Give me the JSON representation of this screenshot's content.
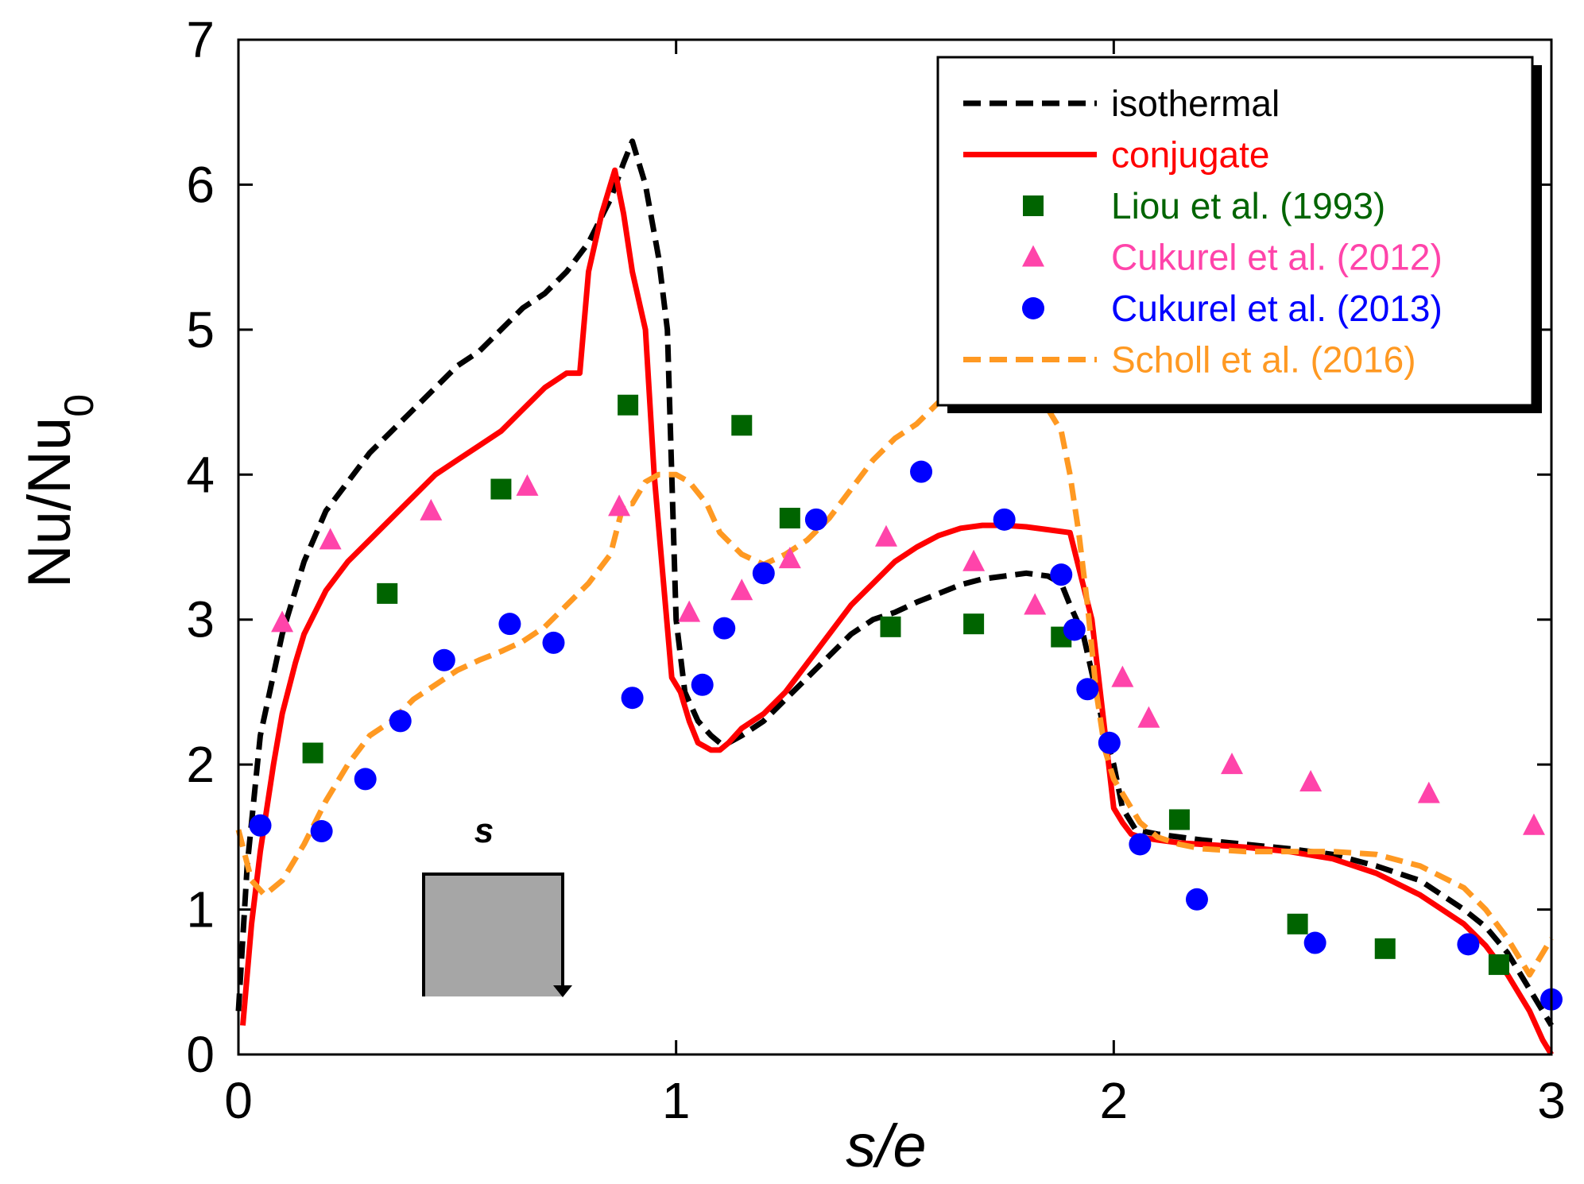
{
  "chart_data": {
    "type": "line",
    "xlabel": "s/e",
    "ylabel": "Nu/Nu0",
    "xlim": [
      0,
      3
    ],
    "ylim": [
      0,
      7
    ],
    "xticks": [
      "0",
      "1",
      "2",
      "3"
    ],
    "yticks": [
      "0",
      "1",
      "2",
      "3",
      "4",
      "5",
      "6",
      "7"
    ],
    "legend_position": "top-right",
    "inset_label": "s",
    "series": [
      {
        "name": "isothermal",
        "kind": "line",
        "style": "dashed",
        "color": "#000000",
        "x": [
          0,
          0.02,
          0.05,
          0.1,
          0.15,
          0.2,
          0.25,
          0.3,
          0.35,
          0.4,
          0.45,
          0.5,
          0.55,
          0.6,
          0.65,
          0.7,
          0.75,
          0.8,
          0.85,
          0.88,
          0.9,
          0.93,
          0.96,
          0.98,
          1.0,
          1.02,
          1.05,
          1.08,
          1.1,
          1.12,
          1.15,
          1.2,
          1.25,
          1.3,
          1.35,
          1.4,
          1.45,
          1.5,
          1.55,
          1.6,
          1.65,
          1.7,
          1.75,
          1.8,
          1.85,
          1.88,
          1.9,
          1.93,
          1.96,
          1.98,
          2.0,
          2.02,
          2.05,
          2.1,
          2.15,
          2.2,
          2.3,
          2.4,
          2.5,
          2.6,
          2.7,
          2.8,
          2.85,
          2.9,
          2.95,
          3.0
        ],
        "y": [
          0.3,
          1.3,
          2.2,
          2.9,
          3.4,
          3.75,
          3.95,
          4.15,
          4.3,
          4.45,
          4.6,
          4.75,
          4.85,
          5.0,
          5.15,
          5.25,
          5.4,
          5.6,
          5.9,
          6.15,
          6.3,
          6.0,
          5.5,
          5.0,
          3.0,
          2.5,
          2.3,
          2.2,
          2.15,
          2.15,
          2.2,
          2.3,
          2.45,
          2.6,
          2.75,
          2.9,
          3.0,
          3.05,
          3.12,
          3.18,
          3.24,
          3.28,
          3.3,
          3.32,
          3.3,
          3.25,
          3.1,
          2.9,
          2.5,
          2.2,
          2.0,
          1.7,
          1.55,
          1.52,
          1.5,
          1.48,
          1.45,
          1.42,
          1.38,
          1.3,
          1.2,
          1.0,
          0.88,
          0.7,
          0.45,
          0.2
        ]
      },
      {
        "name": "conjugate",
        "kind": "line",
        "style": "solid",
        "color": "#ff0000",
        "x": [
          0.01,
          0.03,
          0.05,
          0.08,
          0.1,
          0.13,
          0.15,
          0.2,
          0.25,
          0.3,
          0.35,
          0.4,
          0.45,
          0.5,
          0.55,
          0.6,
          0.65,
          0.7,
          0.75,
          0.78,
          0.8,
          0.83,
          0.86,
          0.88,
          0.9,
          0.93,
          0.95,
          0.97,
          0.99,
          1.01,
          1.03,
          1.05,
          1.08,
          1.1,
          1.12,
          1.15,
          1.2,
          1.25,
          1.3,
          1.35,
          1.4,
          1.45,
          1.5,
          1.55,
          1.6,
          1.65,
          1.7,
          1.75,
          1.8,
          1.85,
          1.9,
          1.95,
          2.0,
          2.02,
          2.04,
          2.06,
          2.1,
          2.15,
          2.2,
          2.3,
          2.4,
          2.5,
          2.6,
          2.7,
          2.8,
          2.85,
          2.9,
          2.95,
          2.98,
          3.0
        ],
        "y": [
          0.2,
          0.9,
          1.4,
          2.0,
          2.35,
          2.7,
          2.9,
          3.2,
          3.4,
          3.55,
          3.7,
          3.85,
          4.0,
          4.1,
          4.2,
          4.3,
          4.45,
          4.6,
          4.7,
          4.7,
          5.4,
          5.8,
          6.1,
          5.8,
          5.4,
          5.0,
          4.0,
          3.3,
          2.6,
          2.5,
          2.3,
          2.15,
          2.1,
          2.1,
          2.15,
          2.25,
          2.35,
          2.5,
          2.7,
          2.9,
          3.1,
          3.25,
          3.4,
          3.5,
          3.58,
          3.63,
          3.65,
          3.65,
          3.64,
          3.62,
          3.6,
          3.0,
          1.7,
          1.6,
          1.52,
          1.5,
          1.48,
          1.46,
          1.45,
          1.43,
          1.4,
          1.35,
          1.25,
          1.1,
          0.9,
          0.75,
          0.55,
          0.3,
          0.1,
          0.0
        ]
      },
      {
        "name": "Liou et al. (1993)",
        "kind": "scatter",
        "marker": "square",
        "color": "#006400",
        "x": [
          0.17,
          0.34,
          0.6,
          0.89,
          1.15,
          1.26,
          1.49,
          1.68,
          1.88,
          2.15,
          2.42,
          2.62,
          2.88
        ],
        "y": [
          2.08,
          3.18,
          3.9,
          4.48,
          4.34,
          3.7,
          2.95,
          2.97,
          2.88,
          1.62,
          0.9,
          0.73,
          0.62
        ]
      },
      {
        "name": "Cukurel et al. (2012)",
        "kind": "scatter",
        "marker": "triangle",
        "color": "#ff44aa",
        "x": [
          0.1,
          0.21,
          0.44,
          0.66,
          0.87,
          1.03,
          1.15,
          1.26,
          1.48,
          1.68,
          1.82,
          2.02,
          2.08,
          2.27,
          2.45,
          2.72,
          2.96
        ],
        "y": [
          2.98,
          3.55,
          3.75,
          3.92,
          3.78,
          3.05,
          3.2,
          3.42,
          3.57,
          3.4,
          3.1,
          2.6,
          2.32,
          2.0,
          1.88,
          1.8,
          1.58
        ]
      },
      {
        "name": "Cukurel et al. (2013)",
        "kind": "scatter",
        "marker": "circle",
        "color": "#0000ff",
        "x": [
          0.05,
          0.19,
          0.29,
          0.37,
          0.47,
          0.62,
          0.72,
          0.9,
          1.06,
          1.11,
          1.2,
          1.32,
          1.56,
          1.75,
          1.88,
          1.91,
          1.94,
          1.99,
          2.06,
          2.19,
          2.46,
          2.81,
          3.0
        ],
        "y": [
          1.58,
          1.54,
          1.9,
          2.3,
          2.72,
          2.97,
          2.84,
          2.46,
          2.55,
          2.94,
          3.32,
          3.69,
          4.02,
          3.69,
          3.31,
          2.93,
          2.52,
          2.15,
          1.45,
          1.07,
          0.77,
          0.76,
          0.38
        ]
      },
      {
        "name": "Scholl et al. (2016)",
        "kind": "line",
        "style": "dashed",
        "color": "#ff9922",
        "x": [
          0.0,
          0.03,
          0.06,
          0.1,
          0.15,
          0.2,
          0.25,
          0.3,
          0.35,
          0.4,
          0.45,
          0.5,
          0.55,
          0.6,
          0.65,
          0.7,
          0.75,
          0.8,
          0.85,
          0.88,
          0.9,
          0.93,
          0.96,
          1.0,
          1.03,
          1.07,
          1.1,
          1.15,
          1.2,
          1.25,
          1.3,
          1.35,
          1.4,
          1.45,
          1.5,
          1.55,
          1.6,
          1.65,
          1.7,
          1.75,
          1.8,
          1.85,
          1.88,
          1.9,
          1.92,
          1.94,
          1.96,
          1.98,
          2.0,
          2.03,
          2.06,
          2.1,
          2.15,
          2.2,
          2.3,
          2.4,
          2.5,
          2.6,
          2.7,
          2.8,
          2.85,
          2.9,
          2.95,
          3.0
        ],
        "y": [
          1.55,
          1.2,
          1.1,
          1.2,
          1.45,
          1.75,
          2.0,
          2.2,
          2.3,
          2.45,
          2.55,
          2.65,
          2.72,
          2.78,
          2.85,
          2.95,
          3.1,
          3.25,
          3.45,
          3.8,
          3.8,
          3.95,
          4.0,
          4.0,
          3.95,
          3.8,
          3.6,
          3.45,
          3.38,
          3.45,
          3.55,
          3.7,
          3.9,
          4.1,
          4.25,
          4.35,
          4.5,
          4.6,
          4.62,
          4.6,
          4.55,
          4.45,
          4.3,
          4.0,
          3.6,
          3.1,
          2.5,
          2.1,
          1.9,
          1.75,
          1.6,
          1.5,
          1.45,
          1.42,
          1.4,
          1.4,
          1.4,
          1.38,
          1.3,
          1.15,
          1.0,
          0.8,
          0.55,
          0.8
        ]
      }
    ]
  }
}
